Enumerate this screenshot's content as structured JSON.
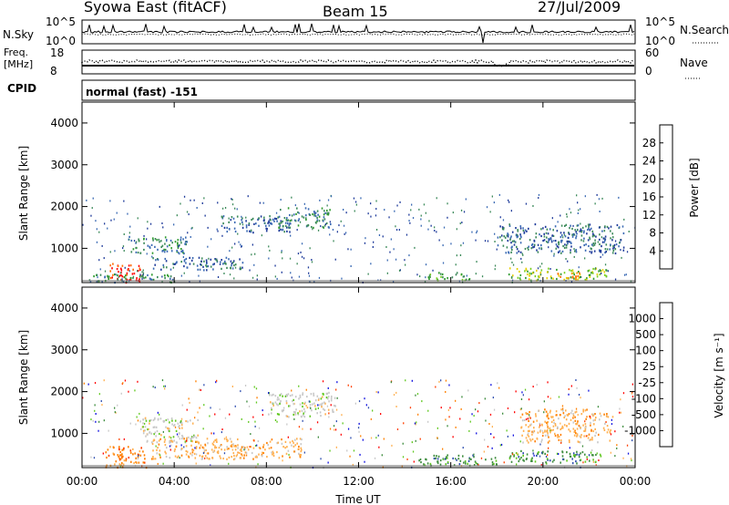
{
  "header": {
    "station": "Syowa East (fitACF)",
    "beam": "Beam 15",
    "date": "27/Jul/2009"
  },
  "panels": {
    "nsky": {
      "label": "N.Sky",
      "top_tick": "10^5",
      "bottom_tick": "10^0"
    },
    "nsearch": {
      "label": "N.Search",
      "top_tick": "10^5",
      "bottom_tick": "10^0"
    },
    "freq": {
      "label_line1": "Freq.",
      "label_line2": "[MHz]",
      "top_tick": "18",
      "bottom_tick": "8"
    },
    "nave": {
      "label": "Nave",
      "top_tick": "60",
      "bottom_tick": "0"
    },
    "cpid": {
      "label": "CPID",
      "value": "normal (fast) -151"
    }
  },
  "colors": {
    "power": [
      "#0000ff",
      "#1e3a9a",
      "#3a6ab4",
      "#3c8a5a",
      "#2e9a2e",
      "#7ad020",
      "#e8d000",
      "#ff9a00",
      "#ff6a00",
      "#ff0000"
    ],
    "velocity": [
      "#ff0000",
      "#ff4000",
      "#ff8000",
      "#ffb050",
      "#c8c8c8",
      "#60c820",
      "#3c8c3c",
      "#3050b0",
      "#1010e0"
    ]
  },
  "chart_data": [
    {
      "type": "heatmap",
      "name": "power",
      "ylabel": "Slant Range [km]",
      "ylim": [
        180,
        4500
      ],
      "yticks": [
        "1000",
        "2000",
        "3000",
        "4000"
      ],
      "xlim_hours": [
        0,
        24
      ],
      "colorbar": {
        "label": "Power [dB]",
        "ticks": [
          "4",
          "8",
          "12",
          "16",
          "20",
          "24",
          "28"
        ]
      },
      "regions": [
        {
          "t": [
            1.2,
            2.6
          ],
          "r": [
            200,
            650
          ],
          "db": 26
        },
        {
          "t": [
            0.2,
            4.0
          ],
          "r": [
            200,
            400
          ],
          "db": 10
        },
        {
          "t": [
            2.0,
            4.6
          ],
          "r": [
            900,
            1300
          ],
          "db": 8
        },
        {
          "t": [
            6.0,
            9.0
          ],
          "r": [
            1400,
            1800
          ],
          "db": 6
        },
        {
          "t": [
            8.5,
            10.8
          ],
          "r": [
            1500,
            2000
          ],
          "db": 8
        },
        {
          "t": [
            3.0,
            7.0
          ],
          "r": [
            500,
            800
          ],
          "db": 7
        },
        {
          "t": [
            15.0,
            16.8
          ],
          "r": [
            250,
            450
          ],
          "db": 12
        },
        {
          "t": [
            18.5,
            22.8
          ],
          "r": [
            250,
            550
          ],
          "db": 14
        },
        {
          "t": [
            20.5,
            21.6
          ],
          "r": [
            250,
            450
          ],
          "db": 22
        },
        {
          "t": [
            18.0,
            23.5
          ],
          "r": [
            900,
            1600
          ],
          "db": 6
        }
      ]
    },
    {
      "type": "heatmap",
      "name": "velocity",
      "ylabel": "Slant Range [km]",
      "ylim": [
        180,
        4500
      ],
      "yticks": [
        "1000",
        "2000",
        "3000",
        "4000"
      ],
      "xlabel": "Time UT",
      "xticks": [
        "00:00",
        "04:00",
        "08:00",
        "12:00",
        "16:00",
        "20:00",
        "00:00"
      ],
      "xlim_hours": [
        0,
        24
      ],
      "colorbar": {
        "label": "Velocity [m s⁻¹]",
        "ticks": [
          "1000",
          "500",
          "100",
          "25",
          "-25",
          "-100",
          "-500",
          "-1000"
        ]
      },
      "regions": [
        {
          "t": [
            1.0,
            2.8
          ],
          "r": [
            200,
            700
          ],
          "v": -300
        },
        {
          "t": [
            2.5,
            5.0
          ],
          "r": [
            800,
            1400
          ],
          "v": 0
        },
        {
          "t": [
            3.0,
            9.5
          ],
          "r": [
            400,
            900
          ],
          "v": -120
        },
        {
          "t": [
            8.0,
            11.0
          ],
          "r": [
            1400,
            2000
          ],
          "v": -20
        },
        {
          "t": [
            14.5,
            18.0
          ],
          "r": [
            250,
            500
          ],
          "v": 200
        },
        {
          "t": [
            18.5,
            22.5
          ],
          "r": [
            300,
            600
          ],
          "v": 200
        },
        {
          "t": [
            19.0,
            23.0
          ],
          "r": [
            800,
            1600
          ],
          "v": -60
        }
      ]
    }
  ]
}
